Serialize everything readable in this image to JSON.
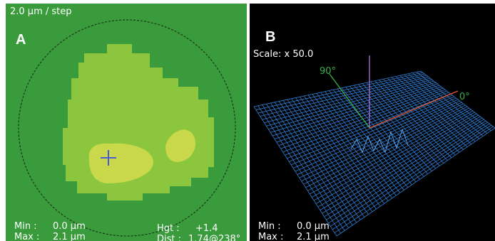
{
  "panel_a": {
    "step": "2.0 µm / step",
    "letter": "A",
    "min_label": "Min :",
    "min_value": "0.0 µm",
    "max_label": "Max :",
    "max_value": "2.1 µm",
    "hgt_label": "Hgt :",
    "hgt_value": "+1.4",
    "dist_label": "Dist :",
    "dist_value": "1.74@238°"
  },
  "panel_b": {
    "letter": "B",
    "scale": "Scale: x 50.0",
    "axis_90": "90°",
    "axis_0": "0°",
    "min_label": "Min :",
    "min_value": "0.0 µm",
    "max_label": "Max :",
    "max_value": "2.1 µm"
  }
}
